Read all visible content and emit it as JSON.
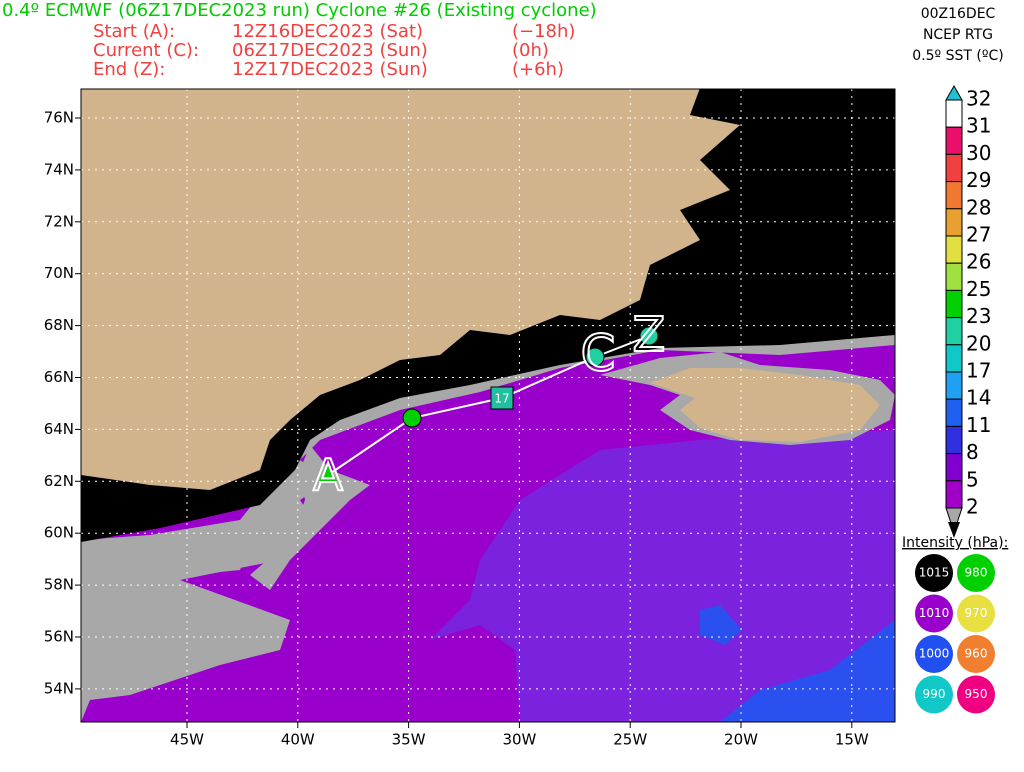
{
  "header": {
    "title": "0.4º ECMWF (06Z17DEC2023 run) Cyclone #26 (Existing cyclone)",
    "lines": [
      [
        "Start (A):",
        "12Z16DEC2023 (Sat)",
        "(−18h)"
      ],
      [
        "Current (C):",
        "06Z17DEC2023 (Sun)",
        "(0h)"
      ],
      [
        "End (Z):",
        "12Z17DEC2023 (Sun)",
        "(+6h)"
      ]
    ]
  },
  "sst": {
    "lines": [
      "00Z16DEC",
      "NCEP RTG",
      "0.5º SST (ºC)"
    ],
    "levels": [
      "32",
      "31",
      "30",
      "29",
      "28",
      "27",
      "26",
      "25",
      "23",
      "20",
      "17",
      "14",
      "11",
      "8",
      "5",
      "2"
    ]
  },
  "intensity": {
    "title": "Intensity (hPa):",
    "items": [
      "1015",
      "980",
      "1010",
      "970",
      "1000",
      "960",
      "990",
      "950"
    ]
  },
  "axes": {
    "lat_labels": [
      "76N",
      "74N",
      "72N",
      "70N",
      "68N",
      "66N",
      "64N",
      "62N",
      "60N",
      "58N",
      "56N",
      "54N"
    ],
    "lon_labels": [
      "45W",
      "40W",
      "35W",
      "30W",
      "25W",
      "20W",
      "15W"
    ]
  },
  "track": {
    "start": "A",
    "current": "C",
    "end": "Z",
    "point_label": "17"
  }
}
